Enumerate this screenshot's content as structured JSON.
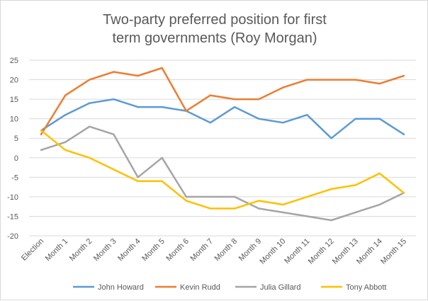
{
  "chart_data": {
    "type": "line",
    "title": [
      "Two-party preferred position for first",
      "term governments (Roy Morgan)"
    ],
    "xlabel": "",
    "ylabel": "",
    "ylim": [
      -20,
      25
    ],
    "ytick_step": 5,
    "grid": true,
    "legend_position": "bottom",
    "categories": [
      "Election",
      "Month 1",
      "Month 2",
      "Month 3",
      "Month 4",
      "Month 5",
      "Month 6",
      "Month 7",
      "Month 8",
      "Month 9",
      "Month 10",
      "Month 11",
      "Month 12",
      "Month 13",
      "Month 14",
      "Month 15"
    ],
    "series": [
      {
        "name": "John Howard",
        "color": "#5b9bd5",
        "values": [
          7,
          11,
          14,
          15,
          13,
          13,
          12,
          9,
          13,
          10,
          9,
          11,
          5,
          10,
          10,
          6
        ]
      },
      {
        "name": "Kevin Rudd",
        "color": "#ed7d31",
        "values": [
          6,
          16,
          20,
          22,
          21,
          23,
          12,
          16,
          15,
          15,
          18,
          20,
          20,
          20,
          19,
          21
        ]
      },
      {
        "name": "Julia Gillard",
        "color": "#a5a5a5",
        "values": [
          2,
          4,
          8,
          6,
          -5,
          0,
          -10,
          -10,
          -10,
          -13,
          -14,
          -15,
          -16,
          -14,
          -12,
          -9
        ]
      },
      {
        "name": "Tony Abbott",
        "color": "#ffc000",
        "values": [
          7,
          2,
          0,
          -3,
          -6,
          -6,
          -11,
          -13,
          -13,
          -11,
          -12,
          -10,
          -8,
          -7,
          -4,
          -9
        ]
      }
    ]
  }
}
